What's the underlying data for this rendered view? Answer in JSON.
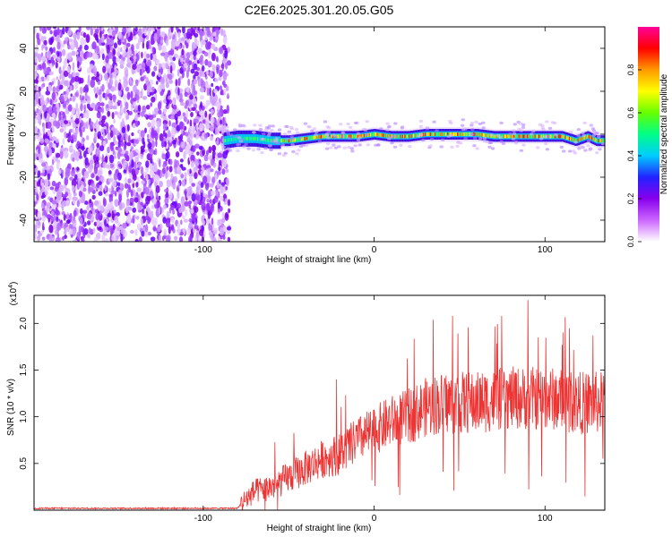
{
  "title": "C2E6.2025.301.20.05.G05",
  "chart_data": [
    {
      "type": "heatmap",
      "name": "spectrogram",
      "xlabel": "Height of straight line (km)",
      "ylabel": "Frequency (Hz)",
      "xlim": [
        -199,
        135
      ],
      "ylim": [
        -50,
        50
      ],
      "xticks": [
        -100,
        0,
        100
      ],
      "yticks": [
        -40,
        -20,
        0,
        20,
        40
      ],
      "noise_region": [
        -199,
        -88
      ],
      "signal_track": {
        "x": [
          -88,
          -80,
          -70,
          -60,
          -50,
          -40,
          -30,
          -20,
          -10,
          0,
          10,
          20,
          30,
          40,
          50,
          60,
          70,
          80,
          90,
          100,
          110,
          118,
          125,
          130,
          135
        ],
        "freq": [
          -3,
          -2,
          -2,
          -3,
          -3,
          -2,
          -1,
          -1,
          -1,
          0,
          -1,
          -1,
          0,
          0,
          0,
          0,
          -1,
          -1,
          -1,
          -1,
          -1,
          -3,
          -1,
          -3,
          -3
        ]
      },
      "colorbar": {
        "label": "Normalized spectral amplitude",
        "ticks": [
          "0.0",
          "0.2",
          "0.4",
          "0.6",
          "0.8"
        ],
        "range": [
          0,
          1
        ],
        "colors": [
          "#ffffff",
          "#cc66ff",
          "#8800ee",
          "#2222ff",
          "#00ccff",
          "#00ff88",
          "#66ff00",
          "#ffff00",
          "#ff9900",
          "#ff0000",
          "#ff0099"
        ]
      }
    },
    {
      "type": "line",
      "name": "snr",
      "xlabel": "Height of straight line (km)",
      "ylabel": "SNR (10 * v/v)",
      "yscale_label": "(x10",
      "yscale_exp": "4",
      "xlim": [
        -199,
        135
      ],
      "ylim": [
        0,
        2.3
      ],
      "xticks": [
        -100,
        0,
        100
      ],
      "yticks": [
        "0.5",
        "1.0",
        "1.5",
        "2.0"
      ],
      "ytick_values": [
        0.5,
        1.0,
        1.5,
        2.0
      ],
      "color": "#ee3333",
      "trend": {
        "x": [
          -199,
          -80,
          -76,
          -70,
          -60,
          -50,
          -40,
          -30,
          -20,
          -10,
          0,
          10,
          20,
          30,
          40,
          50,
          60,
          70,
          80,
          90,
          100,
          110,
          120,
          135
        ],
        "y": [
          0.02,
          0.02,
          0.1,
          0.2,
          0.25,
          0.35,
          0.45,
          0.55,
          0.6,
          0.75,
          0.85,
          0.95,
          1.0,
          1.1,
          1.15,
          1.15,
          1.15,
          1.18,
          1.2,
          1.2,
          1.2,
          1.18,
          1.15,
          1.15
        ]
      },
      "peaks": [
        {
          "x": -22,
          "y": 1.4
        },
        {
          "x": 90,
          "y": 2.25
        },
        {
          "x": 128,
          "y": 1.87
        }
      ]
    }
  ]
}
